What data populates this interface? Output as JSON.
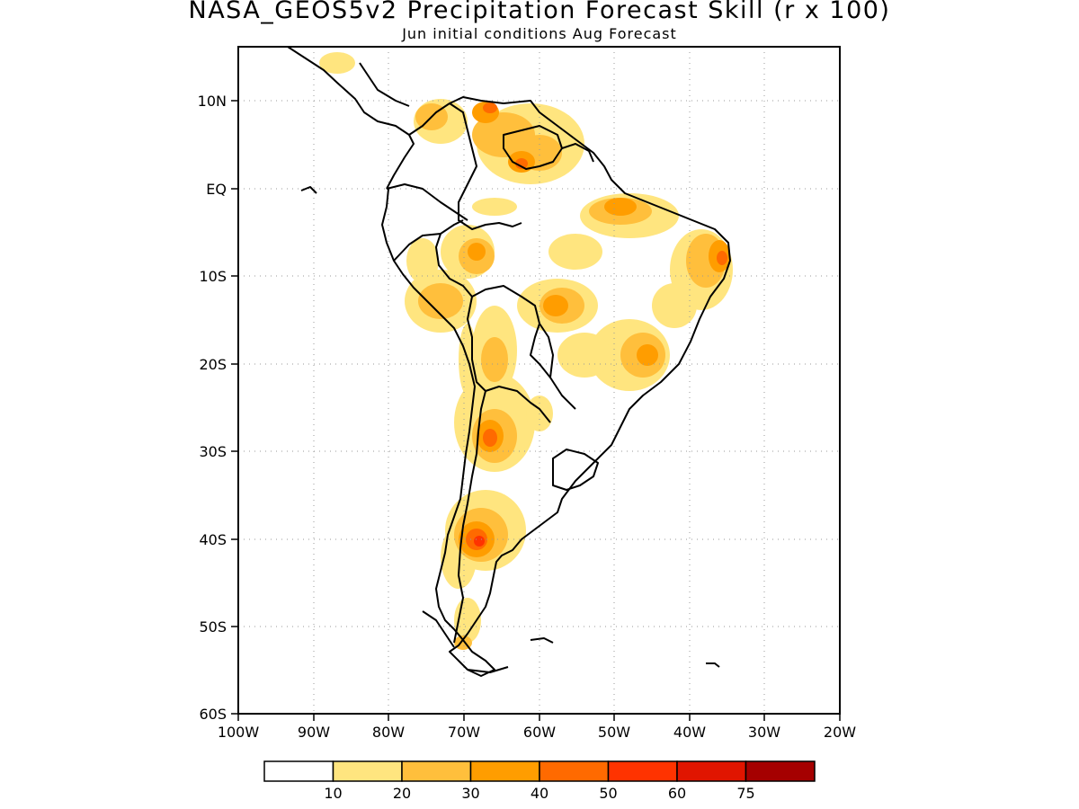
{
  "title": "NASA_GEOS5v2 Precipitation Forecast Skill (r x 100)",
  "subtitle": "Jun initial conditions  Aug Forecast",
  "map": {
    "region": "South America",
    "lon_range": [
      -100,
      -20
    ],
    "lat_range": [
      -60,
      15
    ],
    "lat_labels": [
      "10N",
      "EQ",
      "10S",
      "20S",
      "30S",
      "40S",
      "50S",
      "60S"
    ],
    "lat_values": [
      10,
      0,
      -10,
      -20,
      -30,
      -40,
      -50,
      -60
    ],
    "lon_labels": [
      "100W",
      "90W",
      "80W",
      "70W",
      "60W",
      "50W",
      "40W",
      "30W",
      "20W"
    ],
    "lon_values": [
      -100,
      -90,
      -80,
      -70,
      -60,
      -50,
      -40,
      -30,
      -20
    ],
    "gridlines": true
  },
  "colorbar": {
    "labels": [
      "10",
      "20",
      "30",
      "40",
      "50",
      "60",
      "75"
    ],
    "colors": [
      "#ffffff",
      "#ffe57f",
      "#ffbf3c",
      "#ff9d00",
      "#ff6a00",
      "#ff3300",
      "#e01500",
      "#a50000"
    ]
  }
}
